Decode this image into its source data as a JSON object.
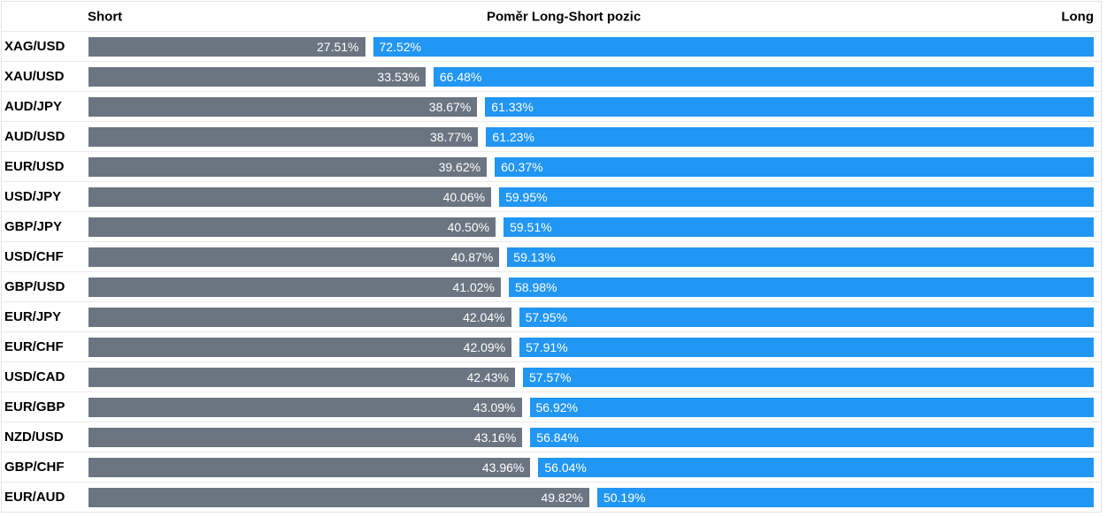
{
  "header": {
    "short_label": "Short",
    "title": "Poměr Long-Short pozic",
    "long_label": "Long"
  },
  "colors": {
    "short_bar": "#6A7581",
    "long_bar": "#2196F3",
    "bar_text": "#ffffff",
    "divider": "#eaeaea",
    "header_text": "#000000"
  },
  "chart_data": {
    "type": "bar",
    "orientation": "horizontal",
    "stacked": true,
    "title": "Poměr Long-Short pozic",
    "legend_left": "Short",
    "legend_right": "Long",
    "unit": "%",
    "value_labels": "shown inside bars, two decimals with % suffix",
    "categories": [
      "XAG/USD",
      "XAU/USD",
      "AUD/JPY",
      "AUD/USD",
      "EUR/USD",
      "USD/JPY",
      "GBP/JPY",
      "USD/CHF",
      "GBP/USD",
      "EUR/JPY",
      "EUR/CHF",
      "USD/CAD",
      "EUR/GBP",
      "NZD/USD",
      "GBP/CHF",
      "EUR/AUD"
    ],
    "series": [
      {
        "name": "Short",
        "color": "#6A7581",
        "values": [
          27.51,
          33.53,
          38.67,
          38.77,
          39.62,
          40.06,
          40.5,
          40.87,
          41.02,
          42.04,
          42.09,
          42.43,
          43.09,
          43.16,
          43.96,
          49.82
        ]
      },
      {
        "name": "Long",
        "color": "#2196F3",
        "values": [
          72.52,
          66.48,
          61.33,
          61.23,
          60.37,
          59.95,
          59.51,
          59.13,
          58.98,
          57.95,
          57.91,
          57.57,
          56.92,
          56.84,
          56.04,
          50.19
        ]
      }
    ],
    "xlim": [
      0,
      100
    ],
    "grid": false,
    "row_dividers": true
  }
}
